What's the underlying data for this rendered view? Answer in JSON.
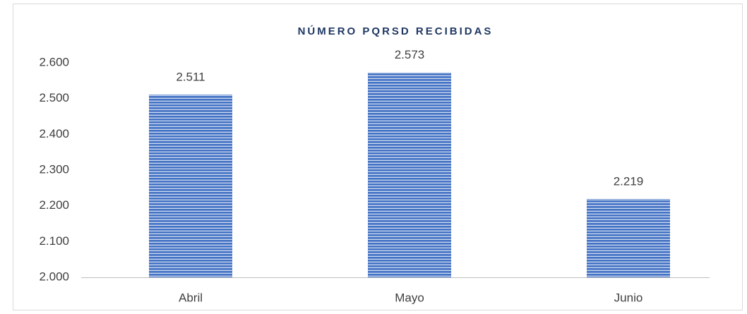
{
  "chart_data": {
    "type": "bar",
    "title": "NÚMERO PQRSD RECIBIDAS",
    "categories": [
      "Abril",
      "Mayo",
      "Junio"
    ],
    "values": [
      2511,
      2573,
      2219
    ],
    "value_labels": [
      "2.511",
      "2.573",
      "2.219"
    ],
    "color": "#4472c4",
    "ylim": [
      2000,
      2600
    ],
    "yticks": [
      {
        "value": 2000,
        "label": "2.000"
      },
      {
        "value": 2100,
        "label": "2.100"
      },
      {
        "value": 2200,
        "label": "2.200"
      },
      {
        "value": 2300,
        "label": "2.300"
      },
      {
        "value": 2400,
        "label": "2.400"
      },
      {
        "value": 2500,
        "label": "2.500"
      },
      {
        "value": 2600,
        "label": "2.600"
      }
    ],
    "grid": false
  }
}
